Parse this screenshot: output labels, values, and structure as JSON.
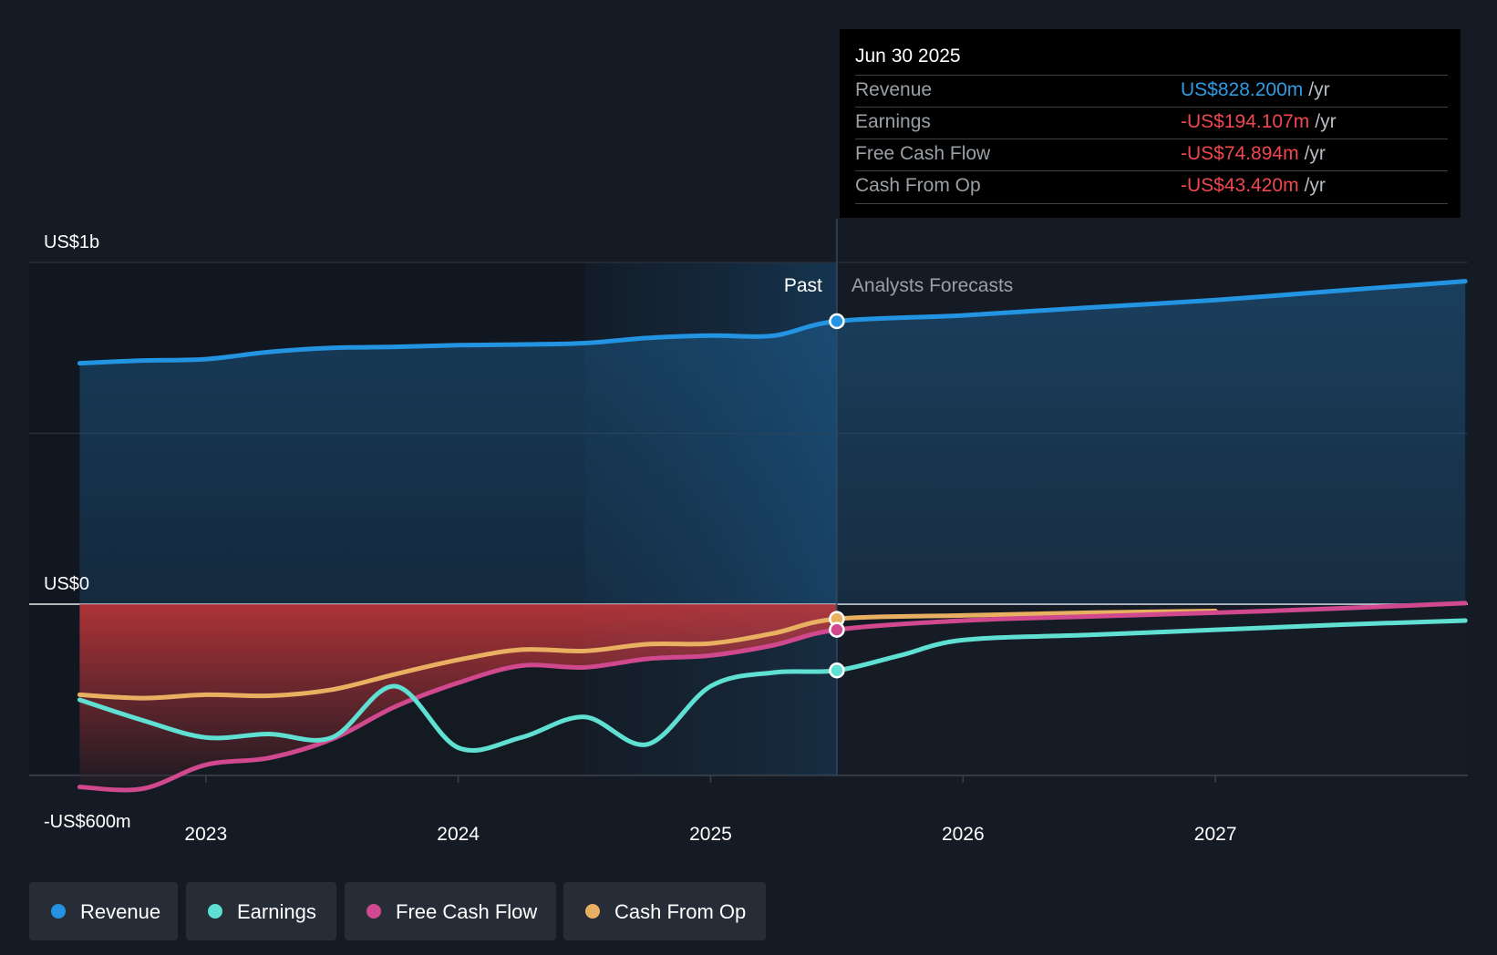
{
  "colors": {
    "revenue": "#2394e1",
    "earnings": "#5fe0d2",
    "fcf": "#d0488e",
    "cfo": "#e8b060",
    "negative_value": "#f0474f",
    "background": "#151b24"
  },
  "tooltip": {
    "date": "Jun 30 2025",
    "rows": [
      {
        "label": "Revenue",
        "value": "US$828.200m",
        "unit": "/yr",
        "color": "#2d9ce3"
      },
      {
        "label": "Earnings",
        "value": "-US$194.107m",
        "unit": "/yr",
        "color": "#f0474f"
      },
      {
        "label": "Free Cash Flow",
        "value": "-US$74.894m",
        "unit": "/yr",
        "color": "#f0474f"
      },
      {
        "label": "Cash From Op",
        "value": "-US$43.420m",
        "unit": "/yr",
        "color": "#f0474f"
      }
    ]
  },
  "legend": [
    {
      "label": "Revenue",
      "color": "#2394e1"
    },
    {
      "label": "Earnings",
      "color": "#5fe0d2"
    },
    {
      "label": "Free Cash Flow",
      "color": "#d0488e"
    },
    {
      "label": "Cash From Op",
      "color": "#e8b060"
    }
  ],
  "chart_data": {
    "type": "line",
    "y_unit": "US$ m",
    "ylim": [
      -600,
      1000
    ],
    "xlim": [
      2022.3,
      2028.0
    ],
    "grid": true,
    "past_label": "Past",
    "forecast_label": "Analysts Forecasts",
    "past_end": 2025.5,
    "highlight_start": 2024.5,
    "y_ticks": [
      {
        "value": 1000,
        "label": "US$1b"
      },
      {
        "value": 0,
        "label": "US$0"
      },
      {
        "value": -600,
        "label": "-US$600m"
      }
    ],
    "x_ticks": [
      {
        "value": 2023,
        "label": "2023"
      },
      {
        "value": 2024,
        "label": "2024"
      },
      {
        "value": 2025,
        "label": "2025"
      },
      {
        "value": 2026,
        "label": "2026"
      },
      {
        "value": 2027,
        "label": "2027"
      }
    ],
    "series": [
      {
        "name": "Revenue",
        "key": "revenue",
        "x": [
          2022.5,
          2022.75,
          2023.0,
          2023.25,
          2023.5,
          2023.75,
          2024.0,
          2024.25,
          2024.5,
          2024.75,
          2025.0,
          2025.25,
          2025.5,
          2026.0,
          2026.5,
          2027.0,
          2027.5,
          2027.99
        ],
        "y": [
          705,
          713,
          717,
          738,
          750,
          753,
          758,
          760,
          764,
          779,
          786,
          786,
          828,
          845,
          868,
          890,
          918,
          945
        ]
      },
      {
        "name": "Earnings",
        "key": "earnings",
        "x": [
          2022.5,
          2022.75,
          2023.0,
          2023.25,
          2023.5,
          2023.75,
          2024.0,
          2024.25,
          2024.5,
          2024.75,
          2025.0,
          2025.25,
          2025.5,
          2025.75,
          2026.0,
          2026.5,
          2027.0,
          2027.5,
          2027.99
        ],
        "y": [
          -280,
          -340,
          -390,
          -380,
          -390,
          -240,
          -420,
          -390,
          -330,
          -410,
          -240,
          -200,
          -194,
          -150,
          -105,
          -90,
          -75,
          -60,
          -48
        ]
      },
      {
        "name": "Free Cash Flow",
        "key": "fcf",
        "x": [
          2022.5,
          2022.75,
          2023.0,
          2023.25,
          2023.5,
          2023.75,
          2024.0,
          2024.25,
          2024.5,
          2024.75,
          2025.0,
          2025.25,
          2025.5,
          2026.0,
          2026.5,
          2027.0,
          2027.5,
          2027.99
        ],
        "y": [
          -535,
          -540,
          -470,
          -450,
          -395,
          -300,
          -230,
          -180,
          -185,
          -160,
          -150,
          -120,
          -75,
          -48,
          -36,
          -25,
          -12,
          3
        ]
      },
      {
        "name": "Cash From Op",
        "key": "cfo",
        "x": [
          2022.5,
          2022.75,
          2023.0,
          2023.25,
          2023.5,
          2023.75,
          2024.0,
          2024.25,
          2024.5,
          2024.75,
          2025.0,
          2025.25,
          2025.5,
          2026.0,
          2026.5,
          2027.0
        ],
        "y": [
          -265,
          -275,
          -265,
          -268,
          -250,
          -205,
          -163,
          -133,
          -137,
          -117,
          -115,
          -85,
          -43,
          -33,
          -25,
          -20
        ]
      }
    ],
    "markers_at": 2025.5
  }
}
